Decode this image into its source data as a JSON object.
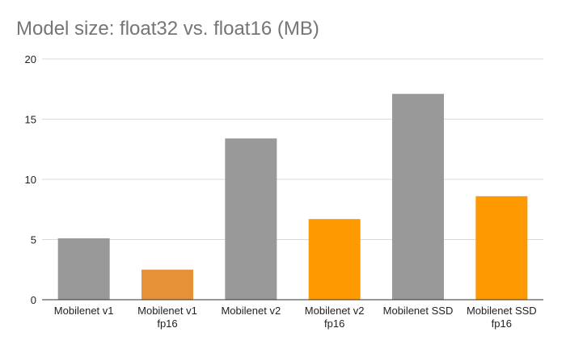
{
  "chart_data": {
    "type": "bar",
    "title": "Model size: float32 vs. float16 (MB)",
    "categories": [
      [
        "Mobilenet v1"
      ],
      [
        "Mobilenet v1",
        "fp16"
      ],
      [
        "Mobilenet v2"
      ],
      [
        "Mobilenet v2",
        "fp16"
      ],
      [
        "Mobilenet SSD"
      ],
      [
        "Mobilenet SSD",
        "fp16"
      ]
    ],
    "values": [
      5.1,
      2.5,
      13.4,
      6.7,
      17.1,
      8.6
    ],
    "bar_colors": [
      "#999999",
      "#e69138",
      "#999999",
      "#ff9900",
      "#999999",
      "#ff9900"
    ],
    "ylim": [
      0,
      20
    ],
    "yticks": [
      0,
      5,
      10,
      15,
      20
    ],
    "grid": true,
    "legend": "none"
  }
}
